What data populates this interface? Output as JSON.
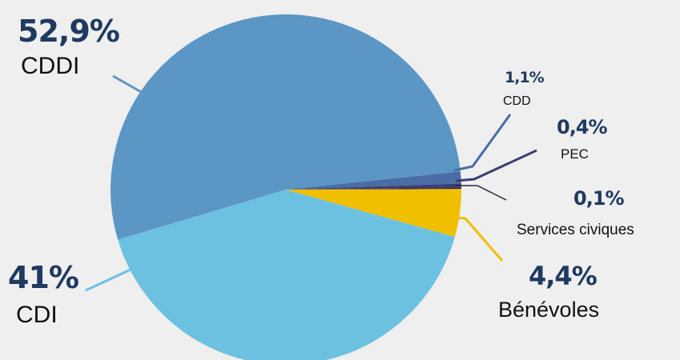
{
  "chart_data": {
    "type": "pie",
    "title": "",
    "legend": "none",
    "slices": [
      {
        "name": "CDDI",
        "value": 52.9,
        "label": "52,9%",
        "color": "#5b96c5"
      },
      {
        "name": "CDD",
        "value": 1.1,
        "label": "1,1%",
        "color": "#4a6da6"
      },
      {
        "name": "PEC",
        "value": 0.4,
        "label": "0,4%",
        "color": "#3b3f73"
      },
      {
        "name": "Services civiques",
        "value": 0.1,
        "label": "0,1%",
        "color": "#2f2140"
      },
      {
        "name": "Bénévoles",
        "value": 4.4,
        "label": "4,4%",
        "color": "#f0bf00"
      },
      {
        "name": "CDI",
        "value": 41,
        "label": "41%",
        "color": "#6cc1e1"
      }
    ]
  }
}
